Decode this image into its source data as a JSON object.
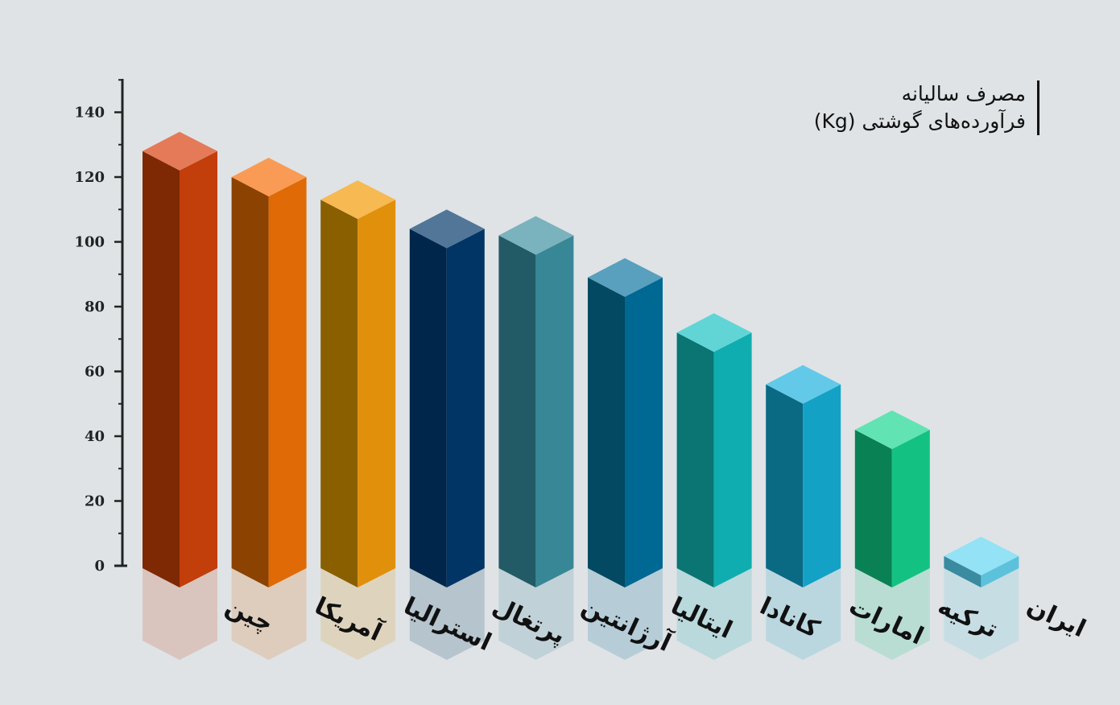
{
  "title": {
    "line1": "مصرف سالیانه",
    "line2": "فرآورده‌های گوشتی (Kg)"
  },
  "chart_data": {
    "type": "bar",
    "title": "مصرف سالیانه فرآورده‌های گوشتی (Kg)",
    "categories": [
      "چین",
      "آمریکا",
      "استرالیا",
      "پرتغال",
      "آرژانتین",
      "ایتالیا",
      "کانادا",
      "امارات",
      "ترکیه",
      "ایران"
    ],
    "values": [
      128,
      120,
      113,
      104,
      102,
      89,
      72,
      56,
      42,
      3
    ],
    "ylim": [
      0,
      150
    ],
    "yticks": [
      0,
      20,
      40,
      60,
      80,
      100,
      120,
      140
    ],
    "grid": false,
    "colors": [
      {
        "front": "#7e2904",
        "side": "#c23e0a",
        "top": "#e47a58"
      },
      {
        "front": "#8c4200",
        "side": "#e06a05",
        "top": "#f99b55"
      },
      {
        "front": "#8a5f00",
        "side": "#e0900a",
        "top": "#f7b951"
      },
      {
        "front": "#00264b",
        "side": "#003565",
        "top": "#517697"
      },
      {
        "front": "#225a66",
        "side": "#388796",
        "top": "#7ab2bd"
      },
      {
        "front": "#034961",
        "side": "#006993",
        "top": "#58a0bd"
      },
      {
        "front": "#0a7572",
        "side": "#10adb0",
        "top": "#61d5d6"
      },
      {
        "front": "#0a6a84",
        "side": "#14a1c6",
        "top": "#62c9e9"
      },
      {
        "front": "#0a8055",
        "side": "#13c282",
        "top": "#62e3b3"
      },
      {
        "front": "#3a8aa0",
        "side": "#5cc2dc",
        "top": "#93e2f5"
      }
    ]
  }
}
